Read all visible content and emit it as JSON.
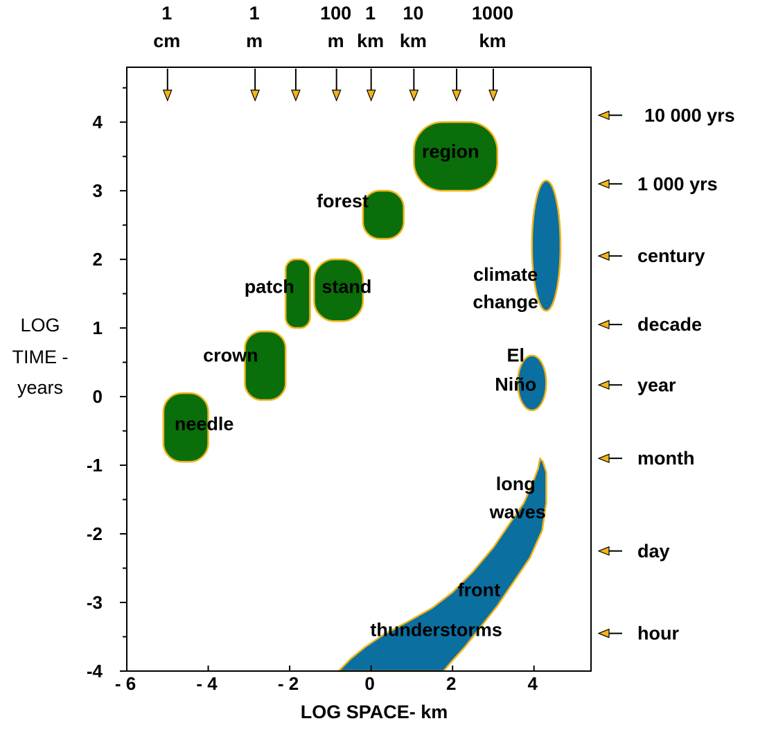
{
  "chart_data": {
    "type": "scatter",
    "xlabel": "LOG SPACE- km",
    "ylabel": [
      "LOG",
      "TIME -",
      "years"
    ],
    "xlim": [
      -6,
      5.4
    ],
    "ylim": [
      -4,
      4.8
    ],
    "x_ticks": [
      "- 6",
      "- 4",
      "- 2",
      "0",
      "2",
      "4"
    ],
    "x_tick_values": [
      -6,
      -4,
      -2,
      0,
      2,
      4
    ],
    "y_ticks": [
      "4",
      "3",
      "2",
      "1",
      "0",
      "-1",
      "-2",
      "-3",
      "-4"
    ],
    "y_tick_values": [
      4,
      3,
      2,
      1,
      0,
      -1,
      -2,
      -3,
      -4
    ],
    "top_scale": [
      {
        "lines": [
          "1",
          "cm"
        ],
        "x": -5
      },
      {
        "lines": [
          "1",
          "m"
        ],
        "x": -2.85
      },
      {
        "lines": [
          "100",
          "m"
        ],
        "x": -0.85
      },
      {
        "lines": [
          "1",
          "km"
        ],
        "x": 0
      },
      {
        "lines": [
          "10",
          "km"
        ],
        "x": 1.05
      },
      {
        "lines": [
          "1000",
          "km"
        ],
        "x": 3
      }
    ],
    "top_arrows_x": [
      -5,
      -2.85,
      -1.85,
      -0.85,
      0,
      1.05,
      2.1,
      3
    ],
    "right_scale": [
      {
        "label": "10 000 yrs",
        "y": 4.1
      },
      {
        "label": "1 000 yrs",
        "y": 3.1
      },
      {
        "label": "century",
        "y": 2.05
      },
      {
        "label": "decade",
        "y": 1.05
      },
      {
        "label": "year",
        "y": 0.17
      },
      {
        "label": "month",
        "y": -0.9
      },
      {
        "label": "day",
        "y": -2.25
      },
      {
        "label": "hour",
        "y": -3.45
      }
    ],
    "vegetation": [
      {
        "label": "needle",
        "x": [
          -5.1,
          -4.0
        ],
        "y": [
          -0.95,
          0.05
        ]
      },
      {
        "label": "crown",
        "x": [
          -3.1,
          -2.1
        ],
        "y": [
          -0.05,
          0.95
        ]
      },
      {
        "label": "patch",
        "x": [
          -2.1,
          -1.5
        ],
        "y": [
          1.0,
          2.0
        ]
      },
      {
        "label": "stand",
        "x": [
          -1.4,
          -0.2
        ],
        "y": [
          1.1,
          2.0
        ]
      },
      {
        "label": "forest",
        "x": [
          -0.2,
          0.8
        ],
        "y": [
          2.3,
          3.0
        ]
      },
      {
        "label": "region",
        "x": [
          1.05,
          3.1
        ],
        "y": [
          3.0,
          4.0
        ]
      }
    ],
    "atmosphere": [
      {
        "label": "climate change",
        "x": [
          3.95,
          4.65
        ],
        "y": [
          1.25,
          3.15
        ],
        "shape": "ellipse"
      },
      {
        "label": "El Niño",
        "x": [
          3.6,
          4.3
        ],
        "y": [
          -0.2,
          0.6
        ],
        "shape": "ellipse"
      },
      {
        "label": "long waves",
        "x": [
          3.9,
          4.25
        ],
        "y": [
          -1.9,
          -0.9
        ],
        "shape": "band"
      },
      {
        "label": "front",
        "x": [
          2.0,
          3.3
        ],
        "y": [
          -3.0,
          -2.7
        ],
        "shape": "band"
      },
      {
        "label": "thunderstorms",
        "x": [
          -0.8,
          3.0
        ],
        "y": [
          -4.0,
          -3.3
        ],
        "shape": "band"
      }
    ],
    "band_outline_left": [
      [
        -0.8,
        -4.0
      ],
      [
        -0.5,
        -3.82
      ],
      [
        -0.15,
        -3.65
      ],
      [
        0.3,
        -3.47
      ],
      [
        0.9,
        -3.28
      ],
      [
        1.5,
        -3.08
      ],
      [
        2.0,
        -2.85
      ],
      [
        2.5,
        -2.55
      ],
      [
        3.0,
        -2.2
      ],
      [
        3.4,
        -1.85
      ],
      [
        3.75,
        -1.55
      ],
      [
        3.95,
        -1.28
      ],
      [
        4.1,
        -1.05
      ],
      [
        4.15,
        -0.9
      ]
    ],
    "band_outline_right": [
      [
        4.22,
        -0.95
      ],
      [
        4.3,
        -1.1
      ],
      [
        4.3,
        -1.55
      ],
      [
        4.2,
        -1.95
      ],
      [
        3.9,
        -2.35
      ],
      [
        3.5,
        -2.7
      ],
      [
        3.1,
        -3.05
      ],
      [
        2.7,
        -3.35
      ],
      [
        2.3,
        -3.65
      ],
      [
        1.95,
        -3.88
      ],
      [
        1.78,
        -4.0
      ]
    ],
    "colors": {
      "vegetation": "#0a6e0a",
      "atmosphere": "#0b6fa0",
      "outline": "#f2b41b",
      "arrow_fill": "#f2b41b",
      "frame": "#000000"
    }
  }
}
